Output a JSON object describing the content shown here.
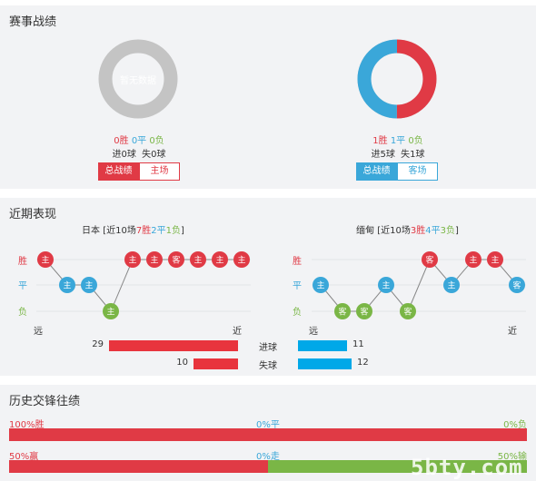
{
  "section_record": {
    "title": "赛事战绩",
    "left": {
      "empty_label": "暂无数据",
      "win": "0胜",
      "draw": "0平",
      "loss": "0负",
      "goals": "进0球  失0球",
      "tab_total": "总战绩",
      "tab_venue": "主场"
    },
    "right": {
      "win": "1胜",
      "draw": "1平",
      "loss": "0负",
      "goals": "进5球  失1球",
      "tab_total": "总战绩",
      "tab_venue": "客场",
      "donut": {
        "win": 1,
        "draw": 1,
        "loss": 0
      }
    }
  },
  "section_recent": {
    "title": "近期表现",
    "left": {
      "team": "日本",
      "summary_prefix": "[近10场",
      "w": "7胜",
      "d": "2平",
      "l": "1负",
      "suffix": "]",
      "y_win": "胜",
      "y_draw": "平",
      "y_loss": "负",
      "x_far": "远",
      "x_near": "近",
      "results": [
        {
          "r": "W",
          "t": "主"
        },
        {
          "r": "D",
          "t": "主"
        },
        {
          "r": "D",
          "t": "主"
        },
        {
          "r": "L",
          "t": "主"
        },
        {
          "r": "W",
          "t": "主"
        },
        {
          "r": "W",
          "t": "主"
        },
        {
          "r": "W",
          "t": "客"
        },
        {
          "r": "W",
          "t": "主"
        },
        {
          "r": "W",
          "t": "主"
        },
        {
          "r": "W",
          "t": "主"
        }
      ]
    },
    "right": {
      "team": "缅甸",
      "summary_prefix": "[近10场",
      "w": "3胜",
      "d": "4平",
      "l": "3负",
      "suffix": "]",
      "y_win": "胜",
      "y_draw": "平",
      "y_loss": "负",
      "x_far": "远",
      "x_near": "近",
      "results": [
        {
          "r": "D",
          "t": "主"
        },
        {
          "r": "L",
          "t": "客"
        },
        {
          "r": "L",
          "t": "客"
        },
        {
          "r": "D",
          "t": "主"
        },
        {
          "r": "L",
          "t": "客"
        },
        {
          "r": "W",
          "t": "客"
        },
        {
          "r": "D",
          "t": "主"
        },
        {
          "r": "W",
          "t": "主"
        },
        {
          "r": "W",
          "t": "主"
        },
        {
          "r": "D",
          "t": "客"
        }
      ]
    },
    "stats": {
      "goals_for_label": "进球",
      "goals_against_label": "失球",
      "left_goals_for": "29",
      "left_goals_against": "10",
      "right_goals_for": "11",
      "right_goals_against": "12",
      "left_for_value": 29,
      "left_against_value": 10,
      "right_for_value": 11,
      "right_against_value": 12
    }
  },
  "section_h2h": {
    "title": "历史交锋往绩",
    "row1": {
      "left": "100%胜",
      "mid": "0%平",
      "right": "0%负",
      "win_pct": 100,
      "draw_pct": 0,
      "loss_pct": 0
    },
    "row2": {
      "left": "50%赢",
      "mid": "0%走",
      "right": "50%输",
      "win_pct": 50,
      "draw_pct": 0,
      "loss_pct": 50
    }
  },
  "watermark": "5bty.com",
  "colors": {
    "red": "#e03a45",
    "blue": "#3aa7d9",
    "green": "#7ab646",
    "bar_blue": "#00a8e8"
  }
}
